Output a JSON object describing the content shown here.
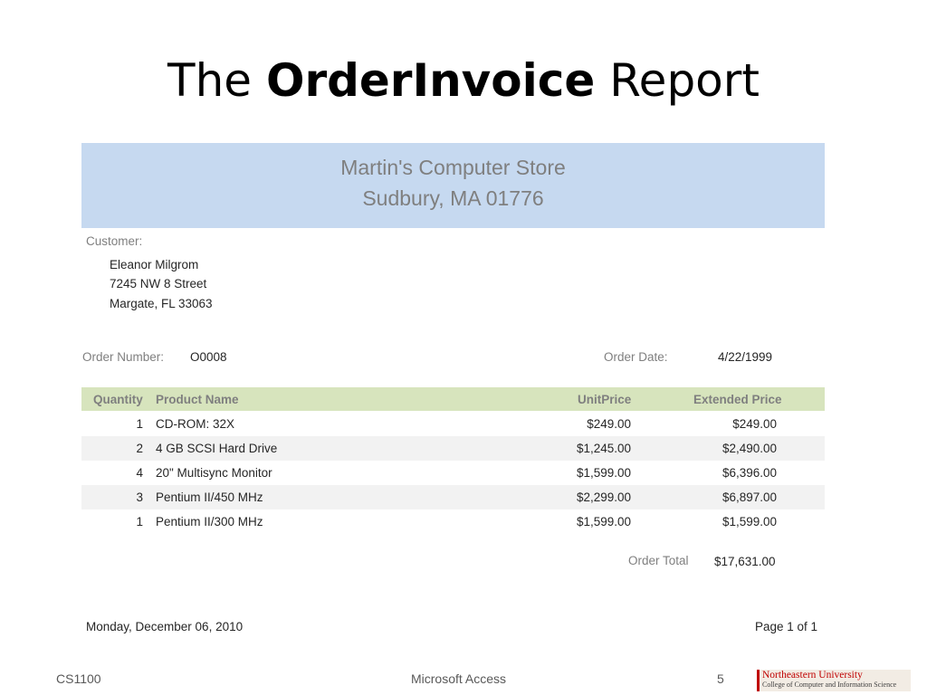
{
  "slide": {
    "title_prefix": "The ",
    "title_bold": "OrderInvoice",
    "title_suffix": " Report"
  },
  "report": {
    "store_name": "Martin's Computer Store",
    "store_city": "Sudbury, MA 01776",
    "customer_label": "Customer:",
    "customer_name": "Eleanor Milgrom",
    "customer_street": "7245 NW 8 Street",
    "customer_city": "Margate, FL 33063",
    "order_number_label": "Order Number:",
    "order_number": "O0008",
    "order_date_label": "Order Date:",
    "order_date": "4/22/1999",
    "columns": {
      "quantity": "Quantity",
      "product": "Product Name",
      "unit_price": "UnitPrice",
      "extended_price": "Extended Price"
    },
    "rows": [
      {
        "quantity": "1",
        "product": "CD-ROM: 32X",
        "unit_price": "$249.00",
        "extended_price": "$249.00"
      },
      {
        "quantity": "2",
        "product": "4 GB SCSI Hard Drive",
        "unit_price": "$1,245.00",
        "extended_price": "$2,490.00"
      },
      {
        "quantity": "4",
        "product": "20\" Multisync Monitor",
        "unit_price": "$1,599.00",
        "extended_price": "$6,396.00"
      },
      {
        "quantity": "3",
        "product": "Pentium II/450 MHz",
        "unit_price": "$2,299.00",
        "extended_price": "$6,897.00"
      },
      {
        "quantity": "1",
        "product": "Pentium II/300 MHz",
        "unit_price": "$1,599.00",
        "extended_price": "$1,599.00"
      }
    ],
    "order_total_label": "Order Total",
    "order_total": "$17,631.00",
    "print_date": "Monday, December 06, 2010",
    "page_info": "Page 1 of 1"
  },
  "footer": {
    "course": "CS1100",
    "topic": "Microsoft Access",
    "slide_number": "5",
    "logo_line1": "Northeastern University",
    "logo_line2": "College of Computer and Information Science"
  }
}
